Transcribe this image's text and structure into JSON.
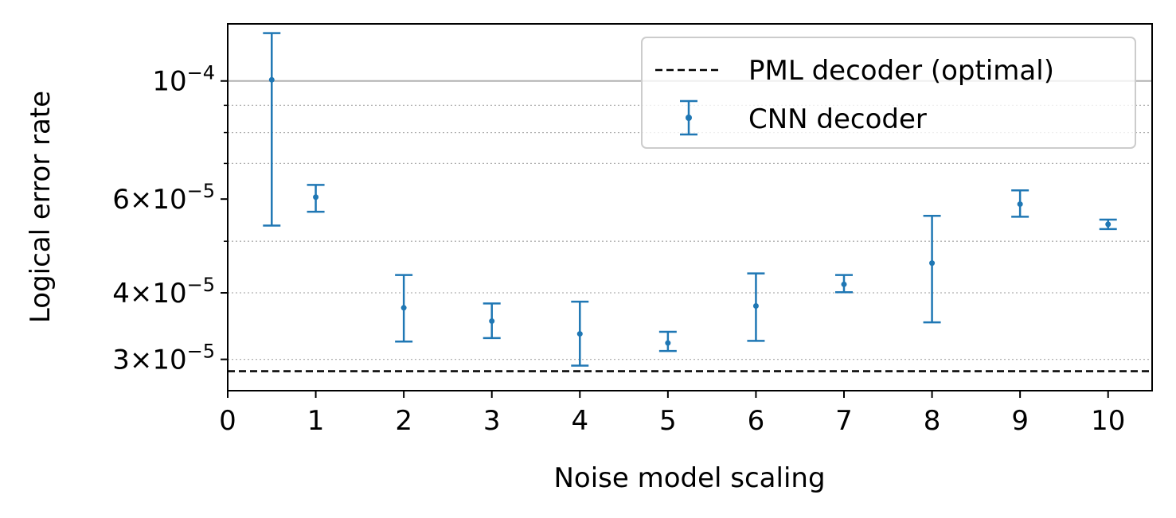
{
  "chart_data": {
    "type": "scatter",
    "xlabel": "Noise model scaling",
    "ylabel": "Logical error rate",
    "xlim": [
      0,
      10.5
    ],
    "ylim": [
      2.62e-05,
      0.000128
    ],
    "yscale": "log",
    "x_ticks": [
      0,
      1,
      2,
      3,
      4,
      5,
      6,
      7,
      8,
      9,
      10
    ],
    "x_tick_labels": [
      "0",
      "1",
      "2",
      "3",
      "4",
      "5",
      "6",
      "7",
      "8",
      "9",
      "10"
    ],
    "y_ticks": [
      3e-05,
      4e-05,
      6e-05,
      0.0001
    ],
    "y_tick_labels": [
      {
        "mantissa": "3",
        "times": "×",
        "base": "10",
        "exp": "−5"
      },
      {
        "mantissa": "4",
        "times": "×",
        "base": "10",
        "exp": "−5"
      },
      {
        "mantissa": "6",
        "times": "×",
        "base": "10",
        "exp": "−5"
      },
      {
        "mantissa": "",
        "times": "",
        "base": "10",
        "exp": "−4"
      }
    ],
    "minor_grid_values": [
      3e-05,
      4e-05,
      5e-05,
      7e-05,
      8e-05,
      9e-05
    ],
    "major_grid_values": [
      0.0001
    ],
    "grid": true,
    "legend_position": "top-right",
    "series": [
      {
        "name": "PML decoder (optimal)",
        "kind": "hline",
        "y": 2.85e-05,
        "color": "#000000",
        "linestyle": "dashed"
      },
      {
        "name": "CNN decoder",
        "kind": "errorbar",
        "color": "#1f77b4",
        "points": [
          {
            "x": 0.5,
            "y": 0.0001005,
            "ylow": 5.35e-05,
            "yhigh": 0.000123
          },
          {
            "x": 1,
            "y": 6.05e-05,
            "ylow": 5.68e-05,
            "yhigh": 6.38e-05
          },
          {
            "x": 2,
            "y": 3.75e-05,
            "ylow": 3.24e-05,
            "yhigh": 4.32e-05
          },
          {
            "x": 3,
            "y": 3.54e-05,
            "ylow": 3.29e-05,
            "yhigh": 3.82e-05
          },
          {
            "x": 4,
            "y": 3.35e-05,
            "ylow": 2.92e-05,
            "yhigh": 3.85e-05
          },
          {
            "x": 5,
            "y": 3.22e-05,
            "ylow": 3.11e-05,
            "yhigh": 3.38e-05
          },
          {
            "x": 6,
            "y": 3.78e-05,
            "ylow": 3.25e-05,
            "yhigh": 4.35e-05
          },
          {
            "x": 7,
            "y": 4.15e-05,
            "ylow": 4.01e-05,
            "yhigh": 4.32e-05
          },
          {
            "x": 8,
            "y": 4.55e-05,
            "ylow": 3.52e-05,
            "yhigh": 5.58e-05
          },
          {
            "x": 9,
            "y": 5.87e-05,
            "ylow": 5.56e-05,
            "yhigh": 6.23e-05
          },
          {
            "x": 10,
            "y": 5.38e-05,
            "ylow": 5.27e-05,
            "yhigh": 5.49e-05
          }
        ]
      }
    ]
  }
}
